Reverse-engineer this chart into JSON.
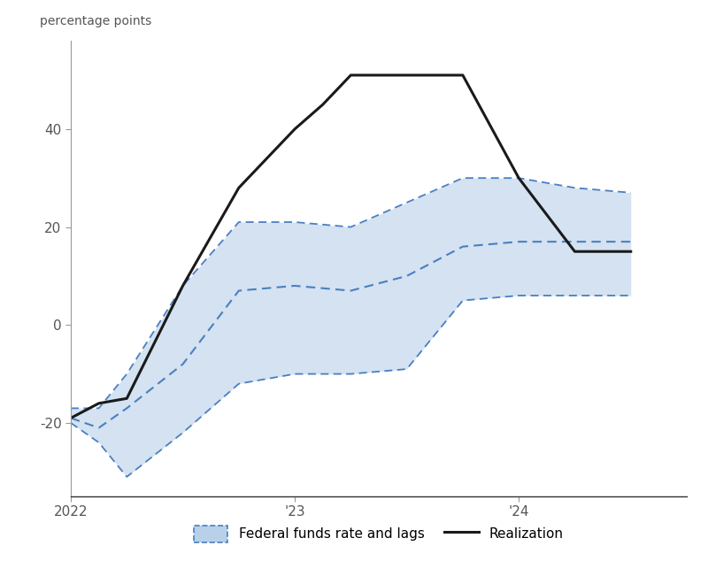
{
  "title_ylabel": "percentage points",
  "xlim": [
    0,
    11
  ],
  "ylim": [
    -35,
    58
  ],
  "yticks": [
    -20,
    0,
    20,
    40
  ],
  "xtick_positions": [
    0,
    4,
    8
  ],
  "xtick_labels": [
    "2022",
    "'23",
    "'24"
  ],
  "realization_x": [
    0,
    0.5,
    1.0,
    2.0,
    3.0,
    4.0,
    4.5,
    5.0,
    6.0,
    7.0,
    8.0,
    9.0,
    9.5,
    10.0
  ],
  "realization_y": [
    -19,
    -16,
    -15,
    8,
    28,
    40,
    45,
    51,
    51,
    51,
    30,
    15,
    15,
    15
  ],
  "pred_mean_x": [
    0,
    0.5,
    1.0,
    2.0,
    3.0,
    4.0,
    5.0,
    6.0,
    7.0,
    8.0,
    9.0,
    10.0
  ],
  "pred_mean_y": [
    -19,
    -21,
    -17,
    -8,
    7,
    8,
    7,
    10,
    16,
    17,
    17,
    17
  ],
  "pred_upper_x": [
    0,
    0.5,
    1.0,
    2.0,
    3.0,
    4.0,
    5.0,
    6.0,
    7.0,
    8.0,
    9.0,
    10.0
  ],
  "pred_upper_y": [
    -17,
    -17,
    -10,
    8,
    21,
    21,
    20,
    25,
    30,
    30,
    28,
    27
  ],
  "pred_lower_x": [
    0,
    0.5,
    1.0,
    2.0,
    3.0,
    4.0,
    5.0,
    6.0,
    7.0,
    8.0,
    9.0,
    10.0
  ],
  "pred_lower_y": [
    -20,
    -24,
    -31,
    -22,
    -12,
    -10,
    -10,
    -9,
    5,
    6,
    6,
    6
  ],
  "fill_color": "#b8d0e8",
  "fill_alpha": 0.6,
  "pred_line_color": "#4a7fc1",
  "real_line_color": "#1a1a1a",
  "background_color": "#ffffff"
}
